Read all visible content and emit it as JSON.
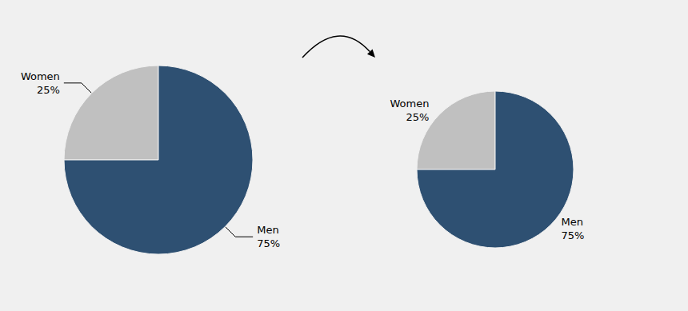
{
  "chart_data": [
    {
      "type": "pie",
      "categories": [
        "Women",
        "Men"
      ],
      "values": [
        25,
        75
      ],
      "value_labels": [
        "25%",
        "75%"
      ],
      "colors": [
        "#c0c0c0",
        "#2e5072"
      ]
    },
    {
      "type": "pie",
      "categories": [
        "Women",
        "Men"
      ],
      "values": [
        25,
        75
      ],
      "value_labels": [
        "25%",
        "75%"
      ],
      "colors": [
        "#c0c0c0",
        "#2e5072"
      ]
    }
  ]
}
